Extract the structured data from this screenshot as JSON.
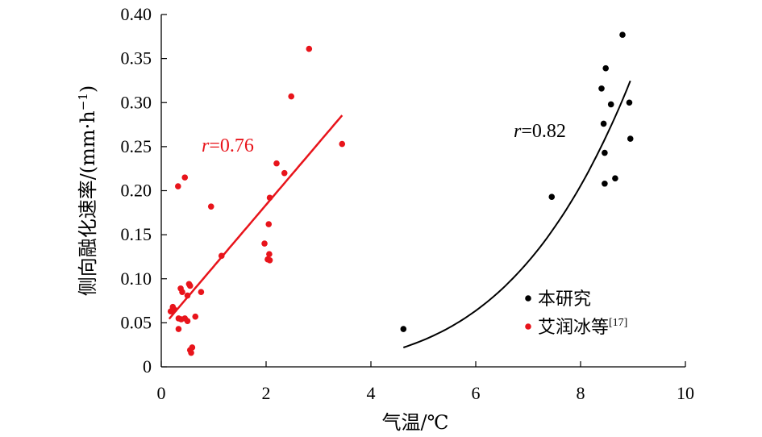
{
  "chart_data": {
    "type": "scatter",
    "xlabel": "气温/℃",
    "ylabel": "侧向融化速率/(mm·h",
    "ylabel_sup": "−1",
    "ylabel_close": ")",
    "xlim": [
      0,
      10
    ],
    "ylim": [
      0,
      0.4
    ],
    "xticks": [
      "0",
      "2",
      "4",
      "6",
      "8",
      "10"
    ],
    "yticks": [
      "0",
      "0.05",
      "0.10",
      "0.15",
      "0.20",
      "0.25",
      "0.30",
      "0.35",
      "0.40"
    ],
    "grid": false,
    "legend_position": "bottom-right",
    "series": [
      {
        "name": "本研究",
        "color": "#000000",
        "points": [
          {
            "x": 4.62,
            "y": 0.043
          },
          {
            "x": 7.45,
            "y": 0.193
          },
          {
            "x": 8.4,
            "y": 0.316
          },
          {
            "x": 8.48,
            "y": 0.339
          },
          {
            "x": 8.8,
            "y": 0.377
          },
          {
            "x": 8.44,
            "y": 0.276
          },
          {
            "x": 8.58,
            "y": 0.298
          },
          {
            "x": 8.93,
            "y": 0.3
          },
          {
            "x": 8.46,
            "y": 0.243
          },
          {
            "x": 8.95,
            "y": 0.259
          },
          {
            "x": 8.66,
            "y": 0.214
          },
          {
            "x": 8.46,
            "y": 0.208
          }
        ],
        "fit": {
          "type": "power",
          "a": 4.34e-05,
          "b": 4.07,
          "x_range": [
            4.62,
            8.95
          ]
        },
        "r_label": "r",
        "r_value": "=0.82"
      },
      {
        "name": "艾润冰等",
        "name_sup": "[17]",
        "color": "#e8141b",
        "points": [
          {
            "x": 2.82,
            "y": 0.361
          },
          {
            "x": 2.48,
            "y": 0.307
          },
          {
            "x": 3.45,
            "y": 0.253
          },
          {
            "x": 2.2,
            "y": 0.231
          },
          {
            "x": 2.35,
            "y": 0.22
          },
          {
            "x": 0.45,
            "y": 0.215
          },
          {
            "x": 0.32,
            "y": 0.205
          },
          {
            "x": 2.07,
            "y": 0.192
          },
          {
            "x": 0.95,
            "y": 0.182
          },
          {
            "x": 2.05,
            "y": 0.162
          },
          {
            "x": 1.97,
            "y": 0.14
          },
          {
            "x": 2.06,
            "y": 0.128
          },
          {
            "x": 1.15,
            "y": 0.126
          },
          {
            "x": 2.03,
            "y": 0.122
          },
          {
            "x": 2.07,
            "y": 0.121
          },
          {
            "x": 0.53,
            "y": 0.094
          },
          {
            "x": 0.37,
            "y": 0.089
          },
          {
            "x": 0.55,
            "y": 0.092
          },
          {
            "x": 0.4,
            "y": 0.085
          },
          {
            "x": 0.76,
            "y": 0.085
          },
          {
            "x": 0.5,
            "y": 0.081
          },
          {
            "x": 0.22,
            "y": 0.068
          },
          {
            "x": 0.18,
            "y": 0.063
          },
          {
            "x": 0.25,
            "y": 0.065
          },
          {
            "x": 0.65,
            "y": 0.057
          },
          {
            "x": 0.33,
            "y": 0.055
          },
          {
            "x": 0.38,
            "y": 0.054
          },
          {
            "x": 0.45,
            "y": 0.055
          },
          {
            "x": 0.5,
            "y": 0.052
          },
          {
            "x": 0.33,
            "y": 0.043
          },
          {
            "x": 0.59,
            "y": 0.022
          },
          {
            "x": 0.55,
            "y": 0.019
          },
          {
            "x": 0.57,
            "y": 0.016
          }
        ],
        "fit": {
          "type": "linear",
          "slope": 0.07,
          "intercept": 0.044,
          "x_range": [
            0.15,
            3.45
          ]
        },
        "r_label": "r",
        "r_value": "=0.76"
      }
    ]
  }
}
